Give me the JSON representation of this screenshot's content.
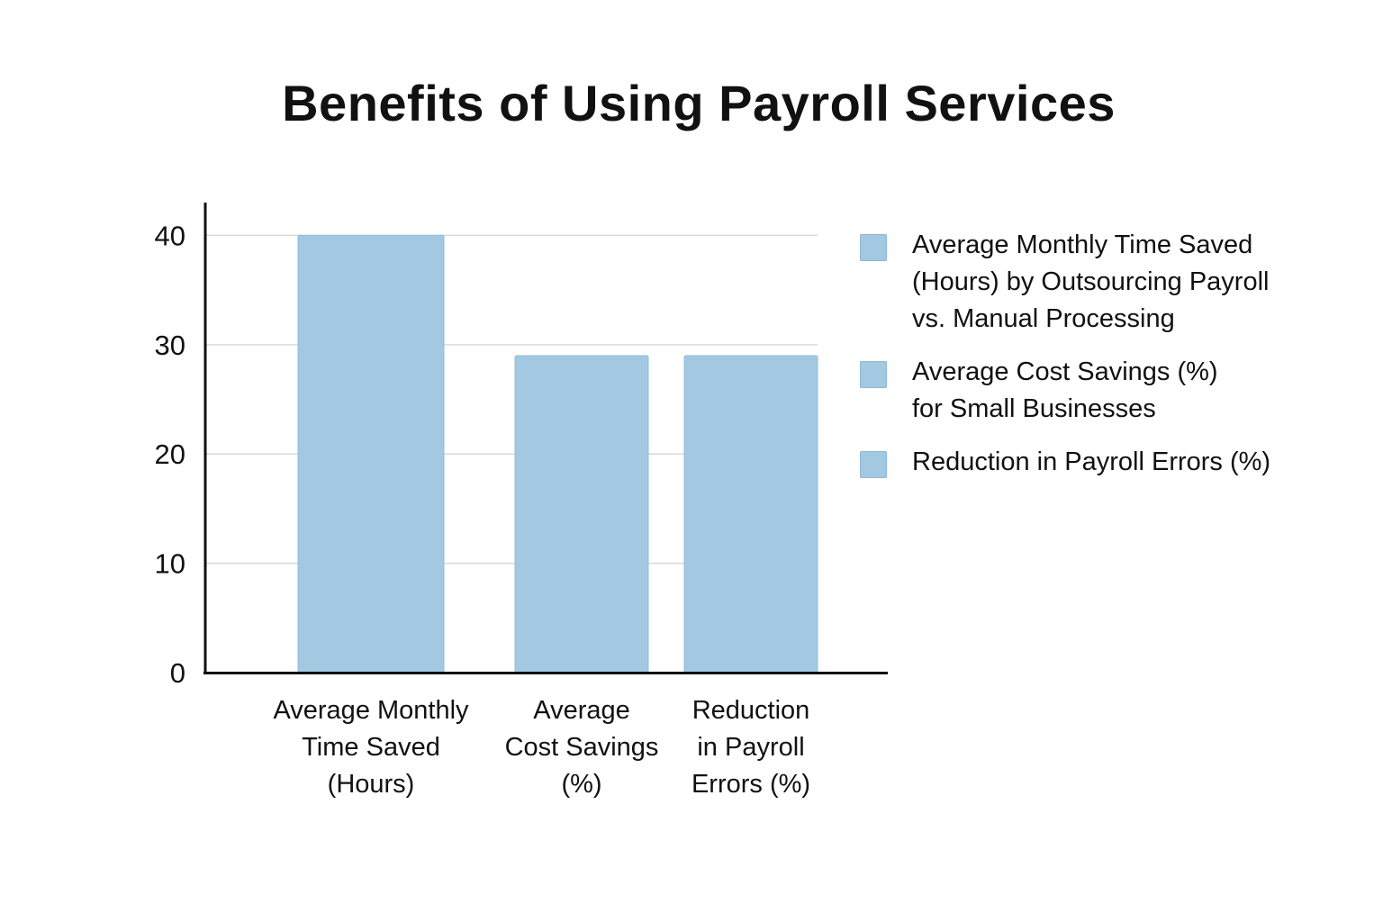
{
  "chart_data": {
    "type": "bar",
    "title": "Benefits of Using Payroll Services",
    "categories": [
      "Average Monthly\nTime Saved\n(Hours)",
      "Average\nCost Savings\n(%)",
      "Reduction\nin Payroll\nErrors (%)"
    ],
    "values": [
      40,
      29,
      29
    ],
    "ylim": [
      0,
      43
    ],
    "yticks": [
      0,
      10,
      20,
      30,
      40
    ],
    "xlabel": "",
    "ylabel": "",
    "grid": true,
    "legend_position": "right",
    "bar_color": "#a3c9e2",
    "legend": [
      "Average Monthly Time Saved\n(Hours) by Outsourcing Payroll\nvs. Manual Processing",
      "Average Cost Savings (%)\nfor Small Businesses",
      "Reduction in Payroll Errors (%)"
    ]
  }
}
